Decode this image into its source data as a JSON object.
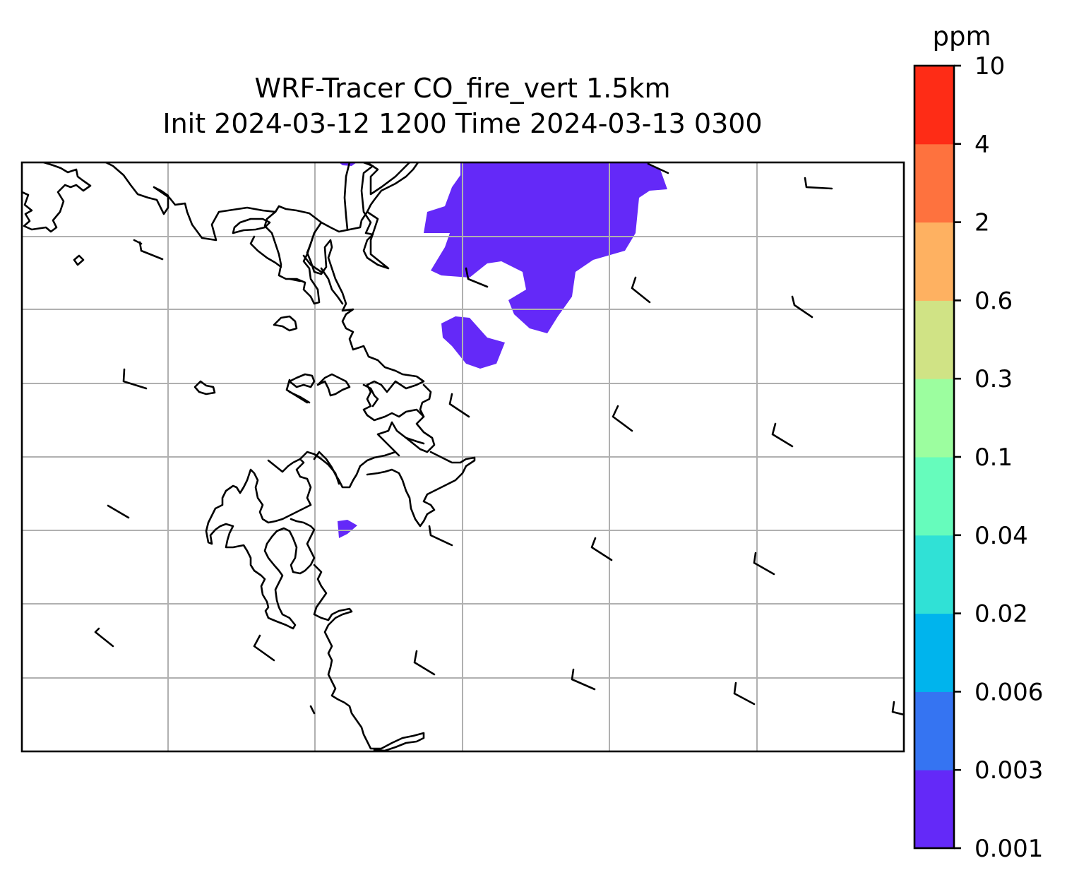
{
  "plot": {
    "title_line1": "WRF-Tracer CO_fire_vert 1.5km",
    "title_line2": "Init 2024-03-12 1200 Time 2024-03-13 0300"
  },
  "colorbar": {
    "unit": "ppm",
    "levels": [
      "0.001",
      "0.003",
      "0.006",
      "0.02",
      "0.04",
      "0.1",
      "0.3",
      "0.6",
      "2",
      "4",
      "10"
    ],
    "colors": [
      "#6429f8",
      "#3574f2",
      "#00b4ed",
      "#30e1d6",
      "#66fcbc",
      "#9cfe9f",
      "#d0e385",
      "#feb161",
      "#fe723e",
      "#fe2c16"
    ]
  },
  "colors": {
    "plume": "#6429f8",
    "grid": "#b0b0b0",
    "coastline": "#000000"
  },
  "legend": {
    "placement": "right"
  }
}
